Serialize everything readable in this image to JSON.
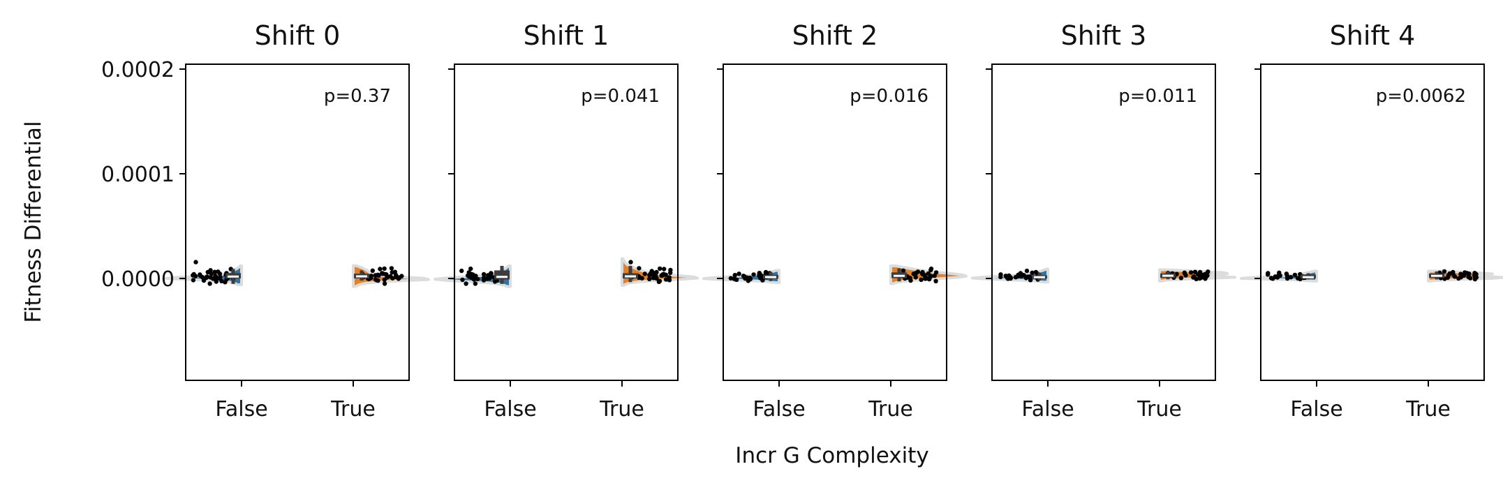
{
  "figure": {
    "ylabel": "Fitness Differential",
    "xlabel": "Incr G Complexity"
  },
  "colors": {
    "false_fill": "#3274a1",
    "true_fill": "#e1812c",
    "violin_edge": "#dcdcdc",
    "box": "#3d3d3d",
    "median": "#ffffff",
    "points": "#000000"
  },
  "chart_data": [
    {
      "type": "violin",
      "title": "Shift 0",
      "annotation": "p=0.37",
      "categories": [
        "False",
        "True"
      ],
      "ylim": [
        -9.55e-05,
        2.05e-05
      ],
      "yticks": [
        0.0,
        0.0001,
        0.0002
      ],
      "yticklabels": [
        "0.0000",
        "0.0001",
        "0.0002"
      ],
      "groups": [
        {
          "name": "False",
          "side": "left",
          "box": {
            "q1": 0.0,
            "median": 1.8e-06,
            "q3": 5.1e-06
          },
          "whisker": [
            -5.2e-06,
            9.2e-06
          ],
          "kde_range": [
            -6e-06,
            1.2e-05
          ],
          "kde": [
            0.05,
            0.08,
            0.12,
            0.2,
            0.4,
            0.7,
            1.0,
            0.85,
            0.55,
            0.35,
            0.25,
            0.2,
            0.18,
            0.14,
            0.1,
            0.07,
            0.05,
            0.03,
            0.02
          ],
          "points": [
            1.56e-05,
            9e-06,
            7.8e-06,
            6.5e-06,
            6.2e-06,
            6e-06,
            5e-06,
            4.5e-06,
            4.4e-06,
            4e-06,
            3.7e-06,
            3.3e-06,
            3e-06,
            2.7e-06,
            2.5e-06,
            2.2e-06,
            2e-06,
            1.7e-06,
            1.4e-06,
            1.2e-06,
            1e-06,
            7e-07,
            5e-07,
            3e-07,
            0.0,
            -3e-07,
            -5e-07,
            -8e-07,
            -1.2e-06,
            -1.6e-06,
            -2e-06,
            -2.5e-06,
            -3e-06,
            -3.5e-06,
            -5e-06
          ]
        },
        {
          "name": "True",
          "side": "right",
          "box": {
            "q1": 0.0,
            "median": 2e-06,
            "q3": 4.6e-06
          },
          "whisker": [
            -2e-06,
            7.7e-06
          ],
          "kde_range": [
            -7.7e-06,
            1.23e-05
          ],
          "kde": [
            0.03,
            0.06,
            0.1,
            0.18,
            0.35,
            0.65,
            1.0,
            0.95,
            0.7,
            0.45,
            0.32,
            0.25,
            0.22,
            0.2,
            0.18,
            0.15,
            0.12,
            0.08,
            0.04
          ],
          "points": [
            9.7e-06,
            9.4e-06,
            9e-06,
            7.5e-06,
            6.2e-06,
            5.8e-06,
            5e-06,
            4.8e-06,
            4.5e-06,
            4.2e-06,
            4e-06,
            3.8e-06,
            3.5e-06,
            3.2e-06,
            3e-06,
            2.8e-06,
            2.5e-06,
            2.3e-06,
            2e-06,
            1.8e-06,
            1.5e-06,
            1.2e-06,
            1e-06,
            8e-07,
            5e-07,
            2e-07,
            0.0,
            -3e-07,
            -6e-07,
            -1e-06,
            -1.3e-06,
            -1.6e-06,
            -2e-06,
            -5e-06
          ]
        }
      ]
    },
    {
      "type": "violin",
      "title": "Shift 1",
      "annotation": "p=0.041",
      "categories": [
        "False",
        "True"
      ],
      "ylim": [
        -9.55e-05,
        2.05e-05
      ],
      "yticks": [
        0.0,
        0.0001,
        0.0002
      ],
      "yticklabels": [
        "0.0000",
        "0.0001",
        "0.0002"
      ],
      "groups": [
        {
          "name": "False",
          "side": "left",
          "box": {
            "q1": -1e-06,
            "median": 1.5e-06,
            "q3": 7.7e-06
          },
          "whisker": [
            -5.2e-06,
            1.2e-05
          ],
          "kde_range": [
            -7.7e-06,
            1.2e-05
          ],
          "kde": [
            0.04,
            0.08,
            0.15,
            0.3,
            0.55,
            0.85,
            1.0,
            0.85,
            0.6,
            0.38,
            0.25,
            0.18,
            0.14,
            0.11,
            0.08,
            0.06,
            0.04,
            0.02
          ],
          "points": [
            9.3e-06,
            7.3e-06,
            5.7e-06,
            5e-06,
            4.6e-06,
            4.2e-06,
            4e-06,
            3.7e-06,
            3.4e-06,
            3e-06,
            2.7e-06,
            2.5e-06,
            2.2e-06,
            2e-06,
            1.8e-06,
            1.5e-06,
            1.2e-06,
            1e-06,
            8e-07,
            5e-07,
            3e-07,
            0.0,
            -3e-07,
            -6e-07,
            -1e-06,
            -1.3e-06,
            -1.7e-06,
            -2.1e-06,
            -3e-06,
            -5e-06,
            -5e-06
          ]
        },
        {
          "name": "True",
          "side": "right",
          "box": {
            "q1": 0.0,
            "median": 2e-06,
            "q3": 5e-06
          },
          "whisker": [
            -3.5e-06,
            1.2e-05
          ],
          "kde_range": [
            -6.7e-06,
            1.9e-05
          ],
          "kde": [
            0.02,
            0.05,
            0.1,
            0.22,
            0.45,
            0.78,
            1.0,
            0.95,
            0.75,
            0.55,
            0.4,
            0.32,
            0.27,
            0.22,
            0.18,
            0.14,
            0.1,
            0.07,
            0.05,
            0.04,
            0.03,
            0.02,
            0.01
          ],
          "points": [
            1.56e-05,
            9.7e-06,
            9.4e-06,
            9e-06,
            8e-06,
            7e-06,
            6e-06,
            5.5e-06,
            5e-06,
            4.7e-06,
            4.4e-06,
            4.2e-06,
            4e-06,
            3.8e-06,
            3.5e-06,
            3.2e-06,
            3e-06,
            2.7e-06,
            2.5e-06,
            2.2e-06,
            2e-06,
            1.7e-06,
            1.5e-06,
            1.2e-06,
            1e-06,
            8e-07,
            5e-07,
            2e-07,
            0.0,
            -5e-07,
            -1e-06,
            -1.5e-06,
            -2.5e-06,
            -3.3e-06
          ]
        }
      ]
    },
    {
      "type": "violin",
      "title": "Shift 2",
      "annotation": "p=0.016",
      "categories": [
        "False",
        "True"
      ],
      "ylim": [
        -9.55e-05,
        2.05e-05
      ],
      "yticks": [
        0.0,
        0.0001,
        0.0002
      ],
      "yticklabels": [
        "0.0000",
        "0.0001",
        "0.0002"
      ],
      "groups": [
        {
          "name": "False",
          "side": "left",
          "box": {
            "q1": -3e-07,
            "median": 1.3e-06,
            "q3": 3.5e-06
          },
          "whisker": [
            -2.5e-06,
            6.2e-06
          ],
          "kde_range": [
            -4e-06,
            7.7e-06
          ],
          "kde": [
            0.05,
            0.15,
            0.4,
            0.8,
            1.0,
            0.85,
            0.6,
            0.4,
            0.3,
            0.22,
            0.15,
            0.08,
            0.04
          ],
          "points": [
            6e-06,
            5.2e-06,
            5e-06,
            4.5e-06,
            4.2e-06,
            4e-06,
            3.7e-06,
            3.5e-06,
            3.2e-06,
            3e-06,
            2.8e-06,
            2.5e-06,
            2.2e-06,
            2e-06,
            1.8e-06,
            1.6e-06,
            1.4e-06,
            1.2e-06,
            1e-06,
            8e-07,
            6e-07,
            4e-07,
            2e-07,
            0.0,
            -2e-07,
            -5e-07,
            -8e-07,
            -1.2e-06,
            -1.7e-06,
            -2.3e-06
          ]
        },
        {
          "name": "True",
          "side": "right",
          "box": {
            "q1": 3e-07,
            "median": 2.5e-06,
            "q3": 5.8e-06
          },
          "whisker": [
            -2.8e-06,
            9.7e-06
          ],
          "kde_range": [
            -5e-06,
            1.2e-05
          ],
          "kde": [
            0.03,
            0.08,
            0.18,
            0.4,
            0.65,
            0.9,
            1.0,
            0.95,
            0.8,
            0.6,
            0.45,
            0.35,
            0.25,
            0.15,
            0.07
          ],
          "points": [
            9.3e-06,
            8e-06,
            7.5e-06,
            6.5e-06,
            6e-06,
            5.7e-06,
            5.4e-06,
            5e-06,
            4.7e-06,
            4.4e-06,
            4.1e-06,
            3.8e-06,
            3.5e-06,
            3.2e-06,
            2.9e-06,
            2.6e-06,
            2.3e-06,
            2e-06,
            1.7e-06,
            1.4e-06,
            1.1e-06,
            8e-07,
            5e-07,
            2e-07,
            0.0,
            -3e-07,
            -7e-07,
            -1.2e-06,
            -2e-06,
            -2.5e-06
          ]
        }
      ]
    },
    {
      "type": "violin",
      "title": "Shift 3",
      "annotation": "p=0.011",
      "categories": [
        "False",
        "True"
      ],
      "ylim": [
        -9.55e-05,
        2.05e-05
      ],
      "yticks": [
        0.0,
        0.0001,
        0.0002
      ],
      "yticklabels": [
        "0.0000",
        "0.0001",
        "0.0002"
      ],
      "groups": [
        {
          "name": "False",
          "side": "left",
          "box": {
            "q1": -2e-07,
            "median": 1.2e-06,
            "q3": 3e-06
          },
          "whisker": [
            -2e-06,
            5.7e-06
          ],
          "kde_range": [
            -3.5e-06,
            9e-06
          ],
          "kde": [
            0.05,
            0.15,
            0.4,
            0.8,
            1.0,
            0.85,
            0.6,
            0.4,
            0.28,
            0.2,
            0.14,
            0.09,
            0.05,
            0.02
          ],
          "points": [
            7.3e-06,
            6e-06,
            5.5e-06,
            5e-06,
            4.5e-06,
            4.2e-06,
            3.8e-06,
            3.5e-06,
            3.2e-06,
            3e-06,
            2.7e-06,
            2.5e-06,
            2.2e-06,
            2e-06,
            1.8e-06,
            1.6e-06,
            1.4e-06,
            1.2e-06,
            1e-06,
            8e-07,
            6e-07,
            4e-07,
            2e-07,
            0.0,
            -3e-07,
            -6e-07,
            -1e-06,
            -1.5e-06
          ]
        },
        {
          "name": "True",
          "side": "right",
          "box": {
            "q1": 5e-07,
            "median": 2.6e-06,
            "q3": 4.8e-06
          },
          "whisker": [
            -8e-07,
            6.7e-06
          ],
          "kde_range": [
            -2.5e-06,
            8.3e-06
          ],
          "kde": [
            0.03,
            0.1,
            0.3,
            0.65,
            1.0,
            0.8,
            0.65,
            0.75,
            0.9,
            0.85,
            0.6,
            0.35,
            0.1
          ],
          "points": [
            6.5e-06,
            6.2e-06,
            6e-06,
            5.7e-06,
            5.5e-06,
            5.2e-06,
            5e-06,
            4.8e-06,
            4.5e-06,
            4.2e-06,
            4e-06,
            3.8e-06,
            3.5e-06,
            3.2e-06,
            3e-06,
            2.7e-06,
            2.5e-06,
            2.2e-06,
            2e-06,
            1.8e-06,
            1.5e-06,
            1.2e-06,
            1e-06,
            8e-07,
            5e-07,
            3e-07,
            0.0,
            -2e-07,
            -5e-07
          ]
        }
      ]
    },
    {
      "type": "violin",
      "title": "Shift 4",
      "annotation": "p=0.0062",
      "categories": [
        "False",
        "True"
      ],
      "ylim": [
        -9.55e-05,
        2.05e-05
      ],
      "yticks": [
        0.0,
        0.0001,
        0.0002
      ],
      "yticklabels": [
        "0.0000",
        "0.0001",
        "0.0002"
      ],
      "groups": [
        {
          "name": "False",
          "side": "left",
          "box": {
            "q1": -2e-07,
            "median": 1.2e-06,
            "q3": 3.8e-06
          },
          "whisker": [
            -1e-06,
            5e-06
          ],
          "kde_range": [
            -2.5e-06,
            7e-06
          ],
          "kde": [
            0.05,
            0.2,
            0.6,
            1.0,
            0.85,
            0.55,
            0.38,
            0.28,
            0.2,
            0.14,
            0.08,
            0.03
          ],
          "points": [
            5.5e-06,
            5e-06,
            4.5e-06,
            4e-06,
            3.7e-06,
            3.4e-06,
            3e-06,
            2.7e-06,
            2.4e-06,
            2.1e-06,
            1.8e-06,
            1.6e-06,
            1.4e-06,
            1.2e-06,
            1e-06,
            8e-07,
            6e-07,
            4e-07,
            2e-07,
            0.0,
            -2e-07,
            -5e-07
          ]
        },
        {
          "name": "True",
          "side": "right",
          "box": {
            "q1": 5e-07,
            "median": 2.5e-06,
            "q3": 4.7e-06
          },
          "whisker": [
            -1e-06,
            6.7e-06
          ],
          "kde_range": [
            -2.5e-06,
            7e-06
          ],
          "kde": [
            0.03,
            0.15,
            0.45,
            0.85,
            1.0,
            0.8,
            0.65,
            0.75,
            0.85,
            0.7,
            0.4,
            0.12
          ],
          "points": [
            6.7e-06,
            6e-06,
            5.7e-06,
            5.5e-06,
            5.2e-06,
            5e-06,
            4.7e-06,
            4.5e-06,
            4.2e-06,
            4e-06,
            3.7e-06,
            3.5e-06,
            3.2e-06,
            3e-06,
            2.7e-06,
            2.5e-06,
            2.2e-06,
            2e-06,
            1.7e-06,
            1.5e-06,
            1.2e-06,
            1e-06,
            8e-07,
            5e-07,
            3e-07,
            0.0,
            -3e-07,
            -7e-07
          ]
        }
      ]
    }
  ]
}
